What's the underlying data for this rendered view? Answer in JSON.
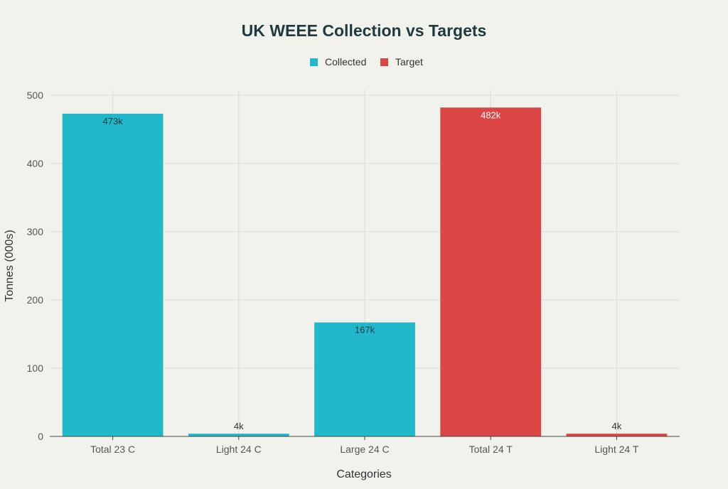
{
  "chart_data": {
    "type": "bar",
    "title": "UK WEEE Collection vs Targets",
    "xlabel": "Categories",
    "ylabel": "Tonnes (000s)",
    "ylim": [
      0,
      500
    ],
    "yticks": [
      0,
      100,
      200,
      300,
      400,
      500
    ],
    "categories": [
      "Total 23 C",
      "Light 24 C",
      "Large 24 C",
      "Total 24 T",
      "Light 24 T"
    ],
    "bars": [
      {
        "category": "Total 23 C",
        "value": 473,
        "series": "Collected",
        "label": "473k"
      },
      {
        "category": "Light 24 C",
        "value": 4,
        "series": "Collected",
        "label": "4k"
      },
      {
        "category": "Large 24 C",
        "value": 167,
        "series": "Collected",
        "label": "167k"
      },
      {
        "category": "Total 24 T",
        "value": 482,
        "series": "Target",
        "label": "482k"
      },
      {
        "category": "Light 24 T",
        "value": 4,
        "series": "Target",
        "label": "4k"
      }
    ],
    "series": [
      {
        "name": "Collected",
        "color": "#21b8cc"
      },
      {
        "name": "Target",
        "color": "#db4545"
      }
    ],
    "legend_position": "top-center",
    "grid": true
  }
}
